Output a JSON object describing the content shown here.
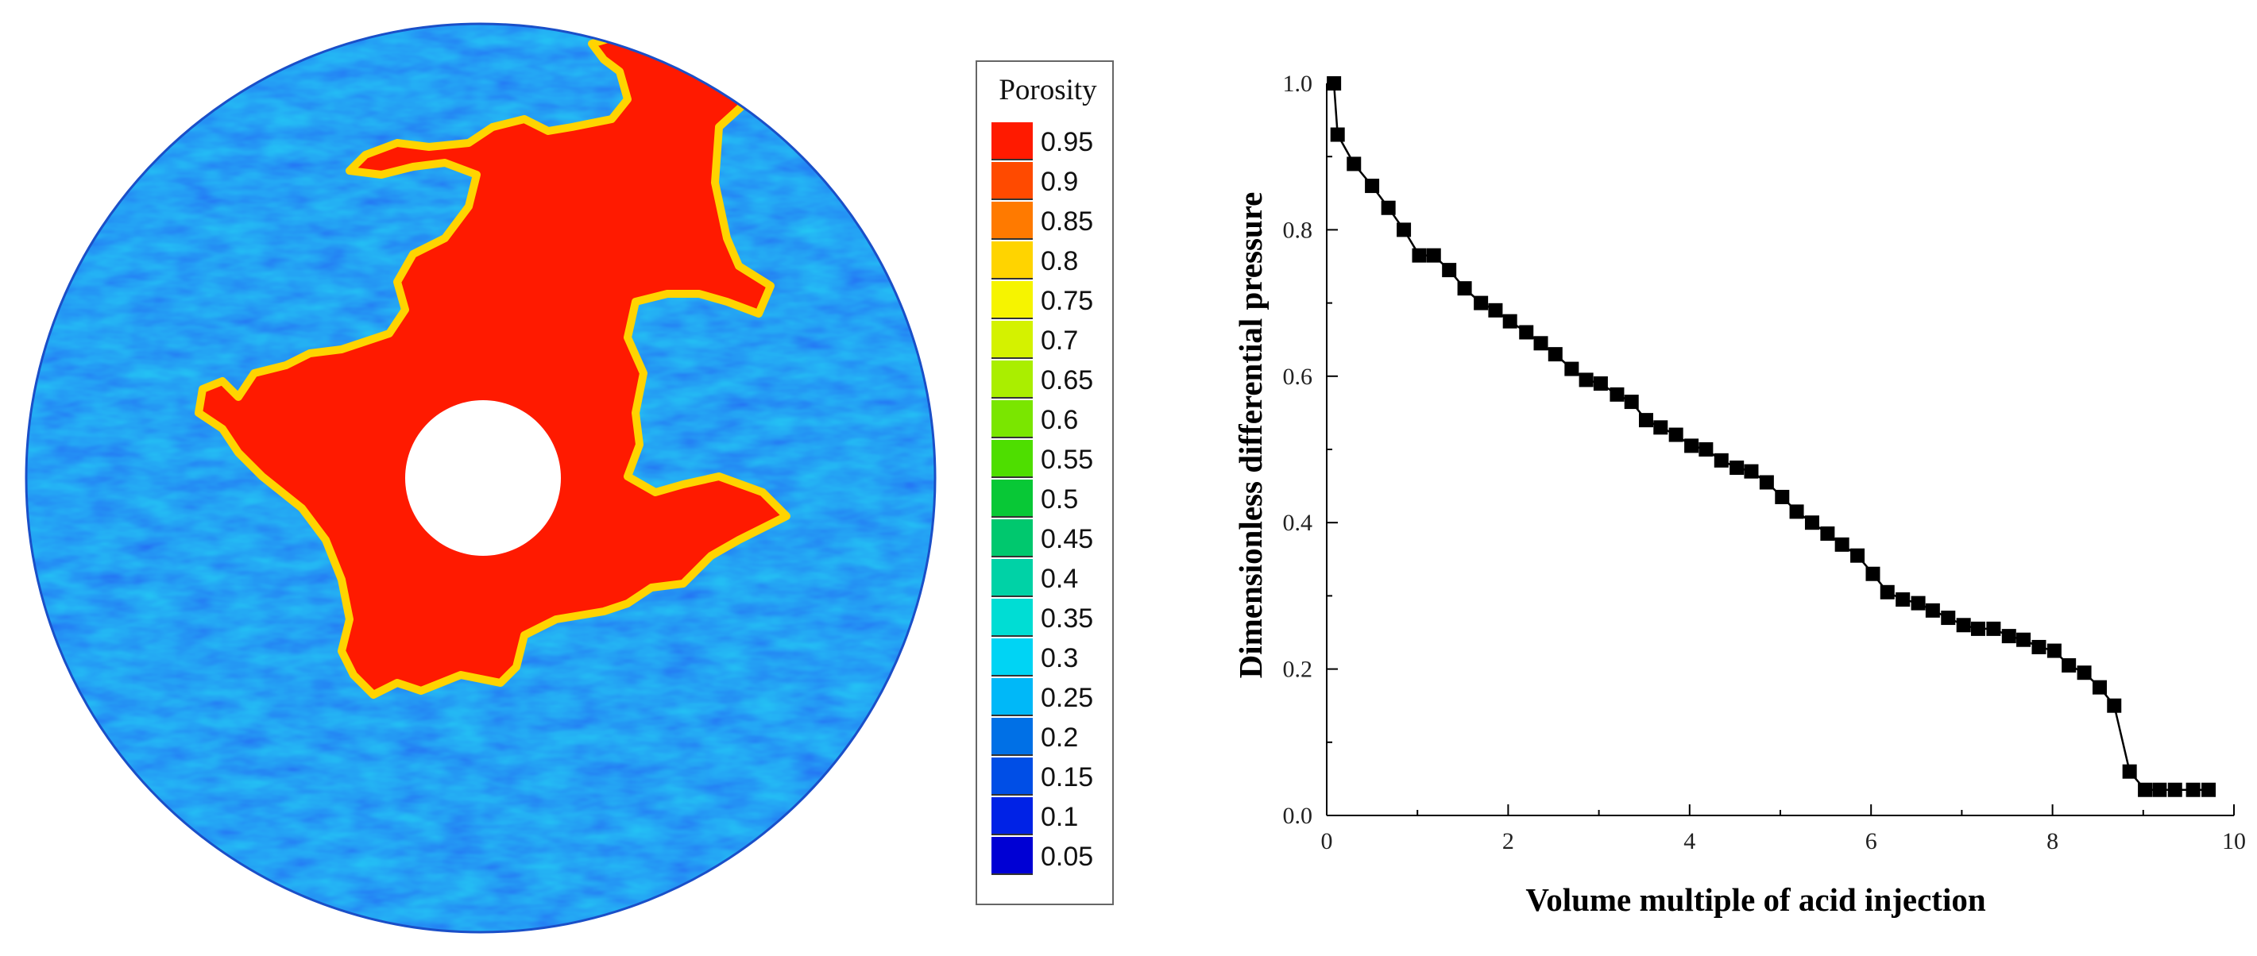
{
  "porosity_legend": {
    "title": "Porosity",
    "colors": [
      "#ff1a00",
      "#ff4a00",
      "#ff7a00",
      "#ffa800",
      "#ffd400",
      "#f6f400",
      "#d4f200",
      "#aaee00",
      "#7ae600",
      "#4ede00",
      "#22d200",
      "#08c836",
      "#00c86e",
      "#00d2a6",
      "#00ddd4",
      "#00d4f4",
      "#00b8f8",
      "#0096ee",
      "#0070e6",
      "#004ee6",
      "#0022e6",
      "#0000d4"
    ],
    "labels": [
      "0.95",
      "0.9",
      "0.85",
      "0.8",
      "0.75",
      "0.7",
      "0.65",
      "0.6",
      "0.55",
      "0.5",
      "0.45",
      "0.4",
      "0.35",
      "0.3",
      "0.25",
      "0.2",
      "0.15",
      "0.1",
      "0.05"
    ]
  },
  "chart_data": {
    "type": "line",
    "xlabel": "Volume multiple of acid injection",
    "ylabel": "Dimensionless differential pressure",
    "xlim": [
      0,
      10
    ],
    "ylim": [
      0,
      1.0
    ],
    "xticks": [
      0,
      2,
      4,
      6,
      8,
      10
    ],
    "yticks": [
      "0.0",
      "0.2",
      "0.4",
      "0.6",
      "0.8",
      "1.0"
    ],
    "marker": "square",
    "color": "#000000",
    "series": [
      {
        "x": [
          0.08,
          0.12,
          0.3,
          0.5,
          0.68,
          0.85,
          1.02,
          1.18,
          1.35,
          1.52,
          1.7,
          1.86,
          2.02,
          2.2,
          2.36,
          2.52,
          2.7,
          2.86,
          3.02,
          3.2,
          3.36,
          3.52,
          3.68,
          3.85,
          4.02,
          4.18,
          4.35,
          4.52,
          4.68,
          4.85,
          5.02,
          5.18,
          5.35,
          5.52,
          5.68,
          5.85,
          6.02,
          6.18,
          6.35,
          6.52,
          6.68,
          6.85,
          7.02,
          7.18,
          7.35,
          7.52,
          7.68,
          7.85,
          8.02,
          8.18,
          8.35,
          8.52,
          8.68,
          8.85,
          9.02,
          9.18,
          9.35,
          9.55,
          9.72
        ],
        "y": [
          1.0,
          0.93,
          0.89,
          0.86,
          0.83,
          0.8,
          0.765,
          0.765,
          0.745,
          0.72,
          0.7,
          0.69,
          0.675,
          0.66,
          0.645,
          0.63,
          0.61,
          0.595,
          0.59,
          0.575,
          0.565,
          0.54,
          0.53,
          0.52,
          0.505,
          0.5,
          0.485,
          0.475,
          0.47,
          0.455,
          0.435,
          0.415,
          0.4,
          0.385,
          0.37,
          0.355,
          0.33,
          0.305,
          0.295,
          0.29,
          0.28,
          0.27,
          0.26,
          0.255,
          0.255,
          0.245,
          0.24,
          0.23,
          0.225,
          0.205,
          0.195,
          0.175,
          0.15,
          0.06,
          0.035,
          0.035,
          0.035,
          0.035,
          0.035
        ]
      }
    ]
  }
}
